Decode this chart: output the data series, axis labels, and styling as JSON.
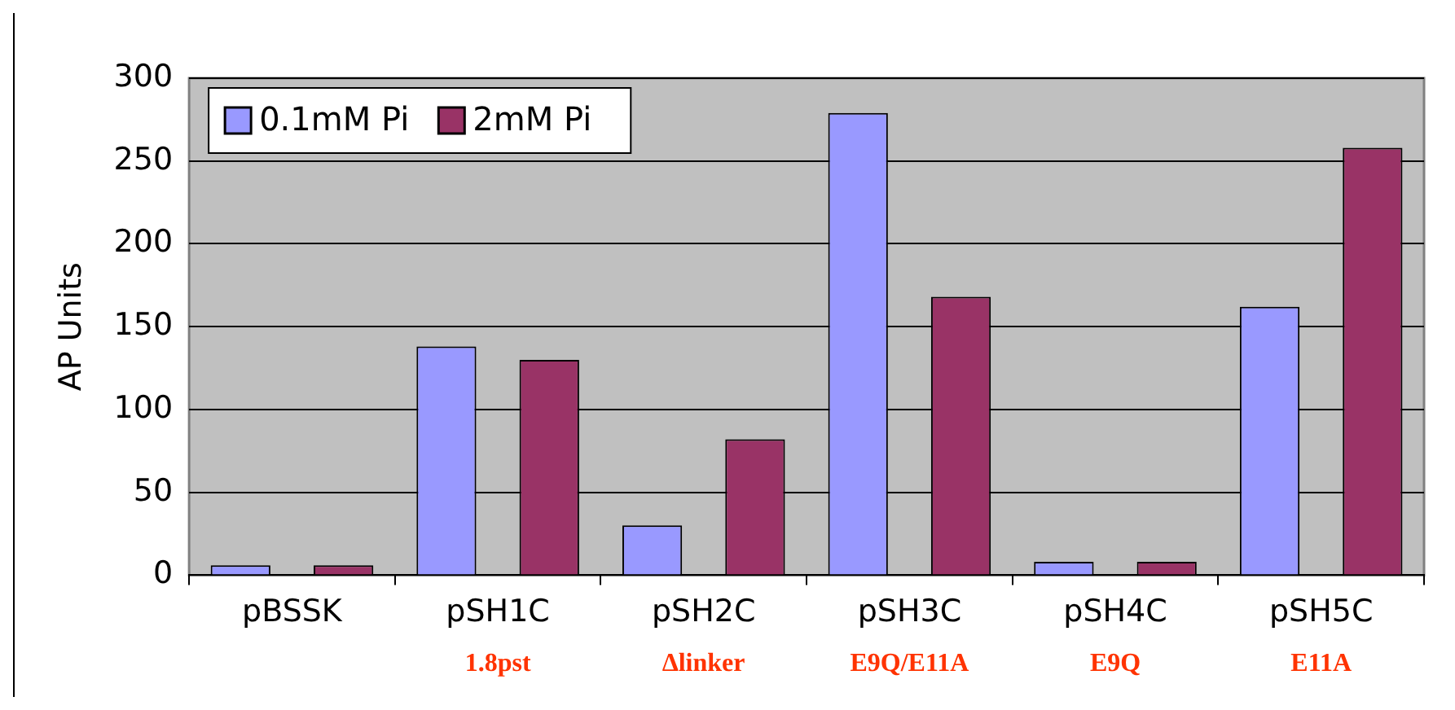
{
  "chart_data": {
    "type": "bar",
    "ylabel": "AP Units",
    "categories": [
      "pBSSK",
      "pSH1C",
      "pSH2C",
      "pSH3C",
      "pSH4C",
      "pSH5C"
    ],
    "series": [
      {
        "name": "0.1mM Pi",
        "color": "#9999ff",
        "values": [
          6,
          138,
          30,
          279,
          8,
          162
        ]
      },
      {
        "name": "2mM Pi",
        "color": "#993366",
        "values": [
          6,
          130,
          82,
          168,
          8,
          258
        ]
      }
    ],
    "ylim": [
      0,
      300
    ],
    "yticks": [
      0,
      50,
      100,
      150,
      200,
      250,
      300
    ],
    "grid": "y",
    "legend": "top left",
    "annotations": [
      "1.8pst",
      "∆linker",
      "E9Q/E11A",
      "E9Q",
      "E11A"
    ]
  }
}
